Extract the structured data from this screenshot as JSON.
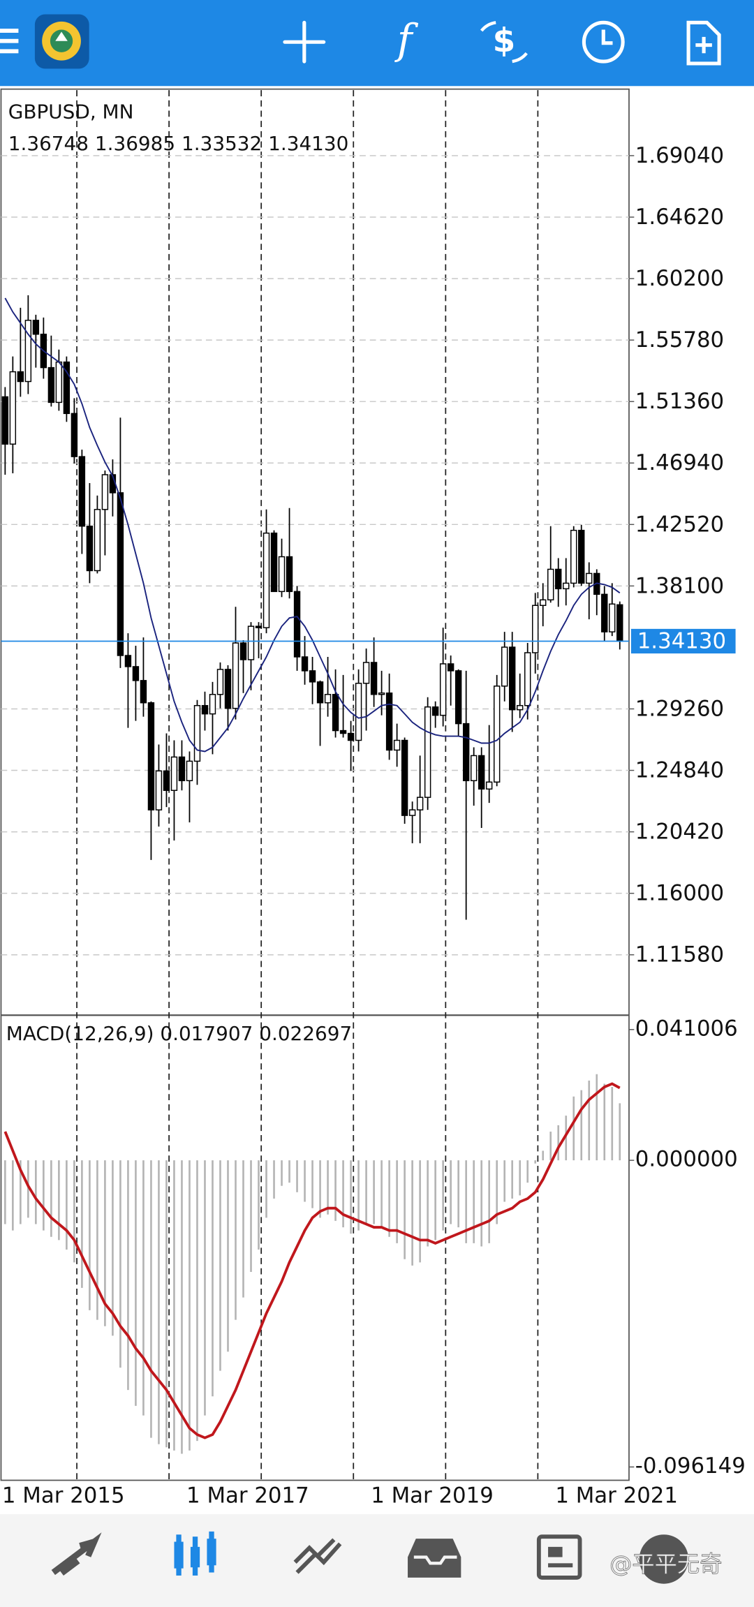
{
  "chart_data": [
    {
      "type": "candlestick",
      "title": "GBPUSD, MN",
      "subtitle": "1.36748 1.36985 1.33532 1.34130",
      "categories": [
        "1 Mar 2015",
        null,
        null,
        null,
        null,
        null,
        null,
        null,
        null,
        null,
        null,
        null,
        null,
        null,
        null,
        null,
        null,
        null,
        null,
        null,
        null,
        null,
        null,
        null,
        "1 Mar 2017",
        null,
        null,
        null,
        null,
        null,
        null,
        null,
        null,
        null,
        null,
        null,
        null,
        null,
        null,
        null,
        null,
        null,
        null,
        null,
        null,
        null,
        null,
        null,
        "1 Mar 2019",
        null,
        null,
        null,
        null,
        null,
        null,
        null,
        null,
        null,
        null,
        null,
        null,
        null,
        null,
        null,
        null,
        null,
        null,
        null,
        null,
        null,
        null,
        null,
        "1 Mar 2021",
        null,
        null,
        null,
        null,
        null,
        null,
        null,
        null
      ],
      "open": [
        1.517,
        1.483,
        1.535,
        1.528,
        1.572,
        1.562,
        1.538,
        1.513,
        1.542,
        1.505,
        1.474,
        1.424,
        1.392,
        1.436,
        1.461,
        1.448,
        1.331,
        1.323,
        1.313,
        1.297,
        1.22,
        1.248,
        1.234,
        1.258,
        1.241,
        1.255,
        1.295,
        1.289,
        1.303,
        1.321,
        1.293,
        1.34,
        1.328,
        1.352,
        1.351,
        1.419,
        1.377,
        1.402,
        1.377,
        1.33,
        1.32,
        1.312,
        1.297,
        1.303,
        1.277,
        1.275,
        1.27,
        1.311,
        1.326,
        1.303,
        1.304,
        1.263,
        1.27,
        1.216,
        1.22,
        1.229,
        1.294,
        1.288,
        1.325,
        1.32,
        1.282,
        1.241,
        1.259,
        1.235,
        1.24,
        1.309,
        1.337,
        1.292,
        1.295,
        1.333,
        1.367,
        1.371,
        1.393,
        1.379,
        1.383,
        1.421,
        1.383,
        1.39,
        1.375,
        1.348,
        1.36748
      ],
      "high": [
        1.524,
        1.546,
        1.581,
        1.59,
        1.576,
        1.574,
        1.561,
        1.551,
        1.546,
        1.516,
        1.479,
        1.455,
        1.446,
        1.464,
        1.472,
        1.502,
        1.347,
        1.338,
        1.344,
        1.298,
        1.267,
        1.275,
        1.27,
        1.27,
        1.262,
        1.299,
        1.305,
        1.312,
        1.326,
        1.324,
        1.366,
        1.342,
        1.355,
        1.355,
        1.436,
        1.421,
        1.415,
        1.437,
        1.381,
        1.345,
        1.33,
        1.313,
        1.33,
        1.321,
        1.317,
        1.284,
        1.321,
        1.336,
        1.344,
        1.32,
        1.318,
        1.282,
        1.272,
        1.226,
        1.259,
        1.301,
        1.298,
        1.351,
        1.331,
        1.321,
        1.32,
        1.265,
        1.265,
        1.281,
        1.317,
        1.348,
        1.348,
        1.318,
        1.34,
        1.376,
        1.383,
        1.424,
        1.401,
        1.401,
        1.424,
        1.425,
        1.398,
        1.393,
        1.381,
        1.383,
        1.36985
      ],
      "low": [
        1.461,
        1.462,
        1.517,
        1.519,
        1.538,
        1.53,
        1.51,
        1.507,
        1.499,
        1.469,
        1.404,
        1.383,
        1.39,
        1.403,
        1.431,
        1.322,
        1.279,
        1.284,
        1.287,
        1.184,
        1.208,
        1.222,
        1.198,
        1.234,
        1.211,
        1.238,
        1.277,
        1.26,
        1.293,
        1.277,
        1.285,
        1.304,
        1.306,
        1.329,
        1.347,
        1.377,
        1.373,
        1.372,
        1.32,
        1.31,
        1.296,
        1.266,
        1.287,
        1.272,
        1.272,
        1.248,
        1.262,
        1.277,
        1.294,
        1.288,
        1.256,
        1.251,
        1.21,
        1.196,
        1.196,
        1.22,
        1.279,
        1.28,
        1.295,
        1.273,
        1.141,
        1.223,
        1.207,
        1.225,
        1.237,
        1.298,
        1.276,
        1.286,
        1.285,
        1.318,
        1.352,
        1.369,
        1.366,
        1.367,
        1.38,
        1.381,
        1.357,
        1.36,
        1.341,
        1.345,
        1.33532
      ],
      "close": [
        1.483,
        1.535,
        1.528,
        1.572,
        1.562,
        1.538,
        1.513,
        1.542,
        1.505,
        1.474,
        1.424,
        1.392,
        1.436,
        1.461,
        1.448,
        1.331,
        1.323,
        1.313,
        1.297,
        1.22,
        1.248,
        1.234,
        1.258,
        1.241,
        1.255,
        1.295,
        1.289,
        1.303,
        1.321,
        1.293,
        1.34,
        1.328,
        1.352,
        1.351,
        1.419,
        1.377,
        1.402,
        1.377,
        1.33,
        1.32,
        1.312,
        1.297,
        1.303,
        1.277,
        1.275,
        1.27,
        1.311,
        1.326,
        1.303,
        1.304,
        1.263,
        1.27,
        1.216,
        1.22,
        1.229,
        1.294,
        1.288,
        1.325,
        1.32,
        1.282,
        1.241,
        1.259,
        1.235,
        1.24,
        1.309,
        1.337,
        1.292,
        1.295,
        1.333,
        1.367,
        1.371,
        1.393,
        1.379,
        1.383,
        1.421,
        1.383,
        1.39,
        1.375,
        1.348,
        1.368,
        1.3413
      ],
      "up_color": "#ffffff",
      "down_color": "#000000",
      "ma": {
        "color": "#1a237e",
        "values": [
          1.588,
          1.578,
          1.57,
          1.562,
          1.555,
          1.55,
          1.546,
          1.542,
          1.535,
          1.526,
          1.512,
          1.495,
          1.482,
          1.47,
          1.46,
          1.444,
          1.425,
          1.404,
          1.383,
          1.358,
          1.338,
          1.318,
          1.298,
          1.283,
          1.27,
          1.263,
          1.262,
          1.265,
          1.272,
          1.279,
          1.289,
          1.3,
          1.31,
          1.32,
          1.33,
          1.342,
          1.352,
          1.358,
          1.359,
          1.352,
          1.342,
          1.33,
          1.318,
          1.305,
          1.296,
          1.29,
          1.286,
          1.287,
          1.291,
          1.295,
          1.296,
          1.295,
          1.289,
          1.283,
          1.279,
          1.276,
          1.274,
          1.273,
          1.273,
          1.273,
          1.272,
          1.27,
          1.268,
          1.268,
          1.27,
          1.275,
          1.279,
          1.283,
          1.292,
          1.305,
          1.32,
          1.334,
          1.346,
          1.356,
          1.367,
          1.375,
          1.38,
          1.383,
          1.382,
          1.38,
          1.376
        ]
      },
      "last_price": {
        "value": 1.3413,
        "label": "1.34130",
        "color": "#1e88e5"
      },
      "ylim": [
        1.0731,
        1.7375
      ],
      "yticks": [
        {
          "value": 1.6904,
          "label": "1.69040"
        },
        {
          "value": 1.6462,
          "label": "1.64620"
        },
        {
          "value": 1.602,
          "label": "1.60200"
        },
        {
          "value": 1.5578,
          "label": "1.55780"
        },
        {
          "value": 1.5136,
          "label": "1.51360"
        },
        {
          "value": 1.4694,
          "label": "1.46940"
        },
        {
          "value": 1.4252,
          "label": "1.42520"
        },
        {
          "value": 1.381,
          "label": "1.38100"
        },
        {
          "value": 1.2926,
          "label": "1.29260"
        },
        {
          "value": 1.2484,
          "label": "1.24840"
        },
        {
          "value": 1.2042,
          "label": "1.20420"
        },
        {
          "value": 1.16,
          "label": "1.16000"
        },
        {
          "value": 1.1158,
          "label": "1.11580"
        }
      ],
      "grid": true
    },
    {
      "type": "macd",
      "title": "MACD(12,26,9) 0.017907 0.022697",
      "histogram": {
        "color": "#b4b4b4",
        "values": [
          -0.02,
          -0.022,
          -0.02,
          -0.018,
          -0.02,
          -0.022,
          -0.024,
          -0.025,
          -0.028,
          -0.032,
          -0.04,
          -0.047,
          -0.05,
          -0.052,
          -0.055,
          -0.065,
          -0.072,
          -0.077,
          -0.08,
          -0.087,
          -0.089,
          -0.09,
          -0.091,
          -0.092,
          -0.091,
          -0.088,
          -0.08,
          -0.074,
          -0.066,
          -0.06,
          -0.05,
          -0.043,
          -0.035,
          -0.028,
          -0.018,
          -0.012,
          -0.008,
          -0.007,
          -0.01,
          -0.013,
          -0.015,
          -0.018,
          -0.017,
          -0.019,
          -0.021,
          -0.023,
          -0.022,
          -0.02,
          -0.02,
          -0.021,
          -0.024,
          -0.026,
          -0.031,
          -0.033,
          -0.032,
          -0.027,
          -0.025,
          -0.022,
          -0.02,
          -0.021,
          -0.026,
          -0.026,
          -0.027,
          -0.026,
          -0.02,
          -0.013,
          -0.012,
          -0.011,
          -0.007,
          -0.001,
          0.003,
          0.009,
          0.011,
          0.014,
          0.02,
          0.022,
          0.025,
          0.027,
          0.024,
          0.023,
          0.017907
        ]
      },
      "signal": {
        "color": "#c0171c",
        "values": [
          0.009,
          0.003,
          -0.003,
          -0.008,
          -0.012,
          -0.015,
          -0.018,
          -0.02,
          -0.022,
          -0.025,
          -0.03,
          -0.035,
          -0.04,
          -0.045,
          -0.048,
          -0.052,
          -0.055,
          -0.059,
          -0.062,
          -0.066,
          -0.069,
          -0.072,
          -0.076,
          -0.08,
          -0.084,
          -0.086,
          -0.087,
          -0.086,
          -0.082,
          -0.077,
          -0.072,
          -0.066,
          -0.06,
          -0.054,
          -0.048,
          -0.043,
          -0.038,
          -0.032,
          -0.027,
          -0.022,
          -0.018,
          -0.016,
          -0.015,
          -0.015,
          -0.017,
          -0.018,
          -0.019,
          -0.02,
          -0.021,
          -0.021,
          -0.022,
          -0.022,
          -0.023,
          -0.024,
          -0.025,
          -0.025,
          -0.026,
          -0.025,
          -0.024,
          -0.023,
          -0.022,
          -0.021,
          -0.02,
          -0.019,
          -0.017,
          -0.016,
          -0.015,
          -0.013,
          -0.012,
          -0.01,
          -0.006,
          -0.001,
          0.004,
          0.008,
          0.012,
          0.016,
          0.019,
          0.021,
          0.023,
          0.024,
          0.022697
        ]
      },
      "ylim": [
        -0.096149,
        0.041006
      ],
      "yticks": [
        0.041006,
        {
          "value": 0,
          "label": "0.000000"
        },
        -0.096149
      ]
    }
  ],
  "watermark": "@平平无奇"
}
